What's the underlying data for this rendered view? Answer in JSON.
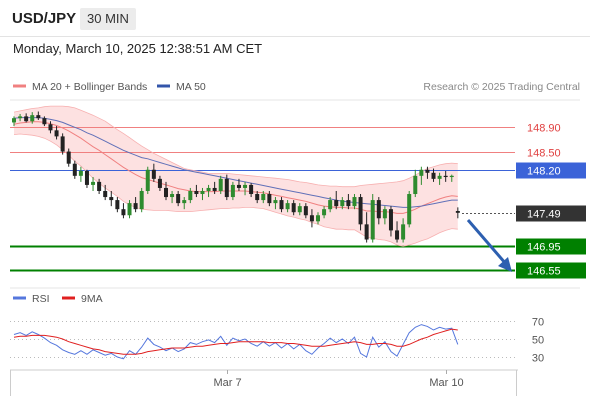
{
  "header": {
    "symbol": "USD/JPY",
    "timeframe": "30 MIN",
    "datetime": "Monday, March 10, 2025 12:38:51 AM CET"
  },
  "legend": {
    "ma20_label": "MA 20 + Bollinger Bands",
    "ma50_label": "MA 50",
    "ma20_color": "#f08080",
    "ma50_color": "#3355aa",
    "credit": "Research © 2025 Trading Central"
  },
  "rsi_legend": {
    "rsi_label": "RSI",
    "ma_label": "9MA",
    "rsi_color": "#5577dd",
    "ma_color": "#e02020"
  },
  "colors": {
    "bull": "#2e8b2e",
    "bear": "#222222",
    "band_fill": "#fde1e1",
    "resistance": "#f08080",
    "ma50_line": "#3b63d8",
    "support": "#008000",
    "current": "#333333"
  },
  "chart_data": [
    {
      "type": "candlestick",
      "title": "USD/JPY",
      "ylim": [
        146.3,
        149.35
      ],
      "x_ticks": [
        "Mar 7",
        "Mar 10"
      ],
      "levels": [
        {
          "label": "148.90",
          "value": 148.9,
          "kind": "resistance"
        },
        {
          "label": "148.50",
          "value": 148.5,
          "kind": "resistance"
        },
        {
          "label": "148.20",
          "value": 148.2,
          "kind": "pivot"
        },
        {
          "label": "147.49",
          "value": 147.49,
          "kind": "current"
        },
        {
          "label": "146.95",
          "value": 146.95,
          "kind": "support"
        },
        {
          "label": "146.55",
          "value": 146.55,
          "kind": "support"
        }
      ],
      "ohlc": [
        [
          148.98,
          149.08,
          148.92,
          149.05
        ],
        [
          149.05,
          149.12,
          149.0,
          149.08
        ],
        [
          149.08,
          149.13,
          148.98,
          149.0
        ],
        [
          149.0,
          149.15,
          148.96,
          149.1
        ],
        [
          149.1,
          149.16,
          149.02,
          149.05
        ],
        [
          149.05,
          149.08,
          148.92,
          148.95
        ],
        [
          148.95,
          149.0,
          148.8,
          148.85
        ],
        [
          148.85,
          148.92,
          148.7,
          148.75
        ],
        [
          148.75,
          148.8,
          148.45,
          148.5
        ],
        [
          148.5,
          148.55,
          148.25,
          148.3
        ],
        [
          148.3,
          148.35,
          148.05,
          148.1
        ],
        [
          148.1,
          148.25,
          148.0,
          148.18
        ],
        [
          148.18,
          148.2,
          147.9,
          147.95
        ],
        [
          147.95,
          148.08,
          147.85,
          148.0
        ],
        [
          148.0,
          148.05,
          147.8,
          147.85
        ],
        [
          147.85,
          147.95,
          147.7,
          147.75
        ],
        [
          147.75,
          147.85,
          147.6,
          147.7
        ],
        [
          147.7,
          147.75,
          147.5,
          147.55
        ],
        [
          147.55,
          147.65,
          147.4,
          147.45
        ],
        [
          147.45,
          147.7,
          147.4,
          147.65
        ],
        [
          147.65,
          147.75,
          147.5,
          147.55
        ],
        [
          147.55,
          147.9,
          147.5,
          147.85
        ],
        [
          147.85,
          148.25,
          147.8,
          148.2
        ],
        [
          148.2,
          148.3,
          148.0,
          148.05
        ],
        [
          148.05,
          148.1,
          147.85,
          147.9
        ],
        [
          147.9,
          148.0,
          147.7,
          147.75
        ],
        [
          147.75,
          147.85,
          147.65,
          147.8
        ],
        [
          147.8,
          147.85,
          147.6,
          147.65
        ],
        [
          147.65,
          147.75,
          147.55,
          147.7
        ],
        [
          147.7,
          147.9,
          147.65,
          147.85
        ],
        [
          147.85,
          147.95,
          147.75,
          147.8
        ],
        [
          147.8,
          147.9,
          147.7,
          147.85
        ],
        [
          147.85,
          147.95,
          147.75,
          147.9
        ],
        [
          147.9,
          148.0,
          147.8,
          147.85
        ],
        [
          147.85,
          148.1,
          147.8,
          148.05
        ],
        [
          148.05,
          148.12,
          147.7,
          147.75
        ],
        [
          147.75,
          148.0,
          147.7,
          147.95
        ],
        [
          147.95,
          148.05,
          147.85,
          147.9
        ],
        [
          147.9,
          148.0,
          147.78,
          147.95
        ],
        [
          147.95,
          147.98,
          147.75,
          147.8
        ],
        [
          147.8,
          147.85,
          147.65,
          147.7
        ],
        [
          147.7,
          147.85,
          147.65,
          147.8
        ],
        [
          147.8,
          147.85,
          147.6,
          147.65
        ],
        [
          147.65,
          147.75,
          147.55,
          147.7
        ],
        [
          147.7,
          147.75,
          147.5,
          147.55
        ],
        [
          147.55,
          147.7,
          147.5,
          147.65
        ],
        [
          147.65,
          147.7,
          147.45,
          147.5
        ],
        [
          147.5,
          147.65,
          147.45,
          147.6
        ],
        [
          147.6,
          147.65,
          147.4,
          147.45
        ],
        [
          147.45,
          147.55,
          147.25,
          147.35
        ],
        [
          147.35,
          147.5,
          147.3,
          147.45
        ],
        [
          147.45,
          147.6,
          147.4,
          147.55
        ],
        [
          147.55,
          147.75,
          147.5,
          147.7
        ],
        [
          147.7,
          147.85,
          147.55,
          147.6
        ],
        [
          147.6,
          147.75,
          147.55,
          147.7
        ],
        [
          147.7,
          147.8,
          147.55,
          147.6
        ],
        [
          147.6,
          147.8,
          147.55,
          147.75
        ],
        [
          147.75,
          147.8,
          147.2,
          147.3
        ],
        [
          147.3,
          147.5,
          147.0,
          147.05
        ],
        [
          147.05,
          147.8,
          147.0,
          147.7
        ],
        [
          147.7,
          147.75,
          147.3,
          147.4
        ],
        [
          147.4,
          147.6,
          147.3,
          147.55
        ],
        [
          147.55,
          147.6,
          147.1,
          147.2
        ],
        [
          147.2,
          147.35,
          147.0,
          147.05
        ],
        [
          147.05,
          147.4,
          147.0,
          147.3
        ],
        [
          147.3,
          147.85,
          147.25,
          147.8
        ],
        [
          147.8,
          148.2,
          147.75,
          148.1
        ],
        [
          148.1,
          148.25,
          147.95,
          148.2
        ],
        [
          148.2,
          148.25,
          148.05,
          148.15
        ],
        [
          148.15,
          148.22,
          148.0,
          148.05
        ],
        [
          148.05,
          148.15,
          147.95,
          148.1
        ],
        [
          148.1,
          148.18,
          148.0,
          148.08
        ],
        [
          148.08,
          148.12,
          148.0,
          148.1
        ],
        [
          147.52,
          147.58,
          147.4,
          147.49
        ]
      ],
      "ma20": [
        148.95,
        148.97,
        148.98,
        148.99,
        148.99,
        148.98,
        148.96,
        148.93,
        148.89,
        148.84,
        148.78,
        148.72,
        148.65,
        148.58,
        148.52,
        148.45,
        148.38,
        148.31,
        148.24,
        148.18,
        148.12,
        148.07,
        148.04,
        148.01,
        147.98,
        147.95,
        147.92,
        147.89,
        147.87,
        147.85,
        147.84,
        147.84,
        147.84,
        147.84,
        147.85,
        147.85,
        147.85,
        147.85,
        147.85,
        147.84,
        147.83,
        147.82,
        147.8,
        147.78,
        147.76,
        147.74,
        147.72,
        147.7,
        147.68,
        147.65,
        147.62,
        147.6,
        147.59,
        147.58,
        147.58,
        147.57,
        147.57,
        147.55,
        147.52,
        147.52,
        147.51,
        147.51,
        147.5,
        147.48,
        147.48,
        147.51,
        147.55,
        147.6,
        147.64,
        147.68,
        147.72,
        147.75,
        147.77,
        147.76
      ],
      "bb_upper": [
        149.15,
        149.17,
        149.19,
        149.21,
        149.22,
        149.24,
        149.25,
        149.25,
        149.25,
        149.24,
        149.22,
        149.18,
        149.14,
        149.1,
        149.05,
        149.0,
        148.93,
        148.86,
        148.8,
        148.73,
        148.66,
        148.59,
        148.53,
        148.47,
        148.42,
        148.37,
        148.32,
        148.27,
        148.22,
        148.2,
        148.18,
        148.16,
        148.14,
        148.14,
        148.14,
        148.14,
        148.13,
        148.12,
        148.11,
        148.1,
        148.09,
        148.08,
        148.07,
        148.06,
        148.05,
        148.04,
        148.02,
        148.0,
        147.99,
        147.97,
        147.95,
        147.94,
        147.93,
        147.93,
        147.92,
        147.92,
        147.92,
        147.94,
        147.95,
        147.96,
        147.97,
        147.98,
        147.99,
        148.0,
        148.02,
        148.06,
        148.11,
        148.17,
        148.22,
        148.25,
        148.28,
        148.3,
        148.31,
        148.3
      ],
      "bb_lower": [
        148.78,
        148.79,
        148.78,
        148.77,
        148.75,
        148.72,
        148.67,
        148.61,
        148.53,
        148.44,
        148.34,
        148.26,
        148.16,
        148.06,
        147.98,
        147.9,
        147.83,
        147.76,
        147.68,
        147.62,
        147.58,
        147.55,
        147.54,
        147.53,
        147.53,
        147.53,
        147.52,
        147.51,
        147.51,
        147.51,
        147.52,
        147.53,
        147.54,
        147.55,
        147.56,
        147.56,
        147.57,
        147.57,
        147.58,
        147.58,
        147.57,
        147.56,
        147.53,
        147.5,
        147.47,
        147.44,
        147.42,
        147.39,
        147.37,
        147.33,
        147.3,
        147.26,
        147.24,
        147.22,
        147.22,
        147.21,
        147.21,
        147.15,
        147.09,
        147.07,
        147.05,
        147.04,
        147.01,
        146.96,
        146.94,
        146.96,
        146.99,
        147.03,
        147.06,
        147.11,
        147.16,
        147.2,
        147.23,
        147.22
      ],
      "ma50": [
        149.05,
        149.06,
        149.06,
        149.06,
        149.06,
        149.05,
        149.03,
        149.01,
        148.98,
        148.94,
        148.9,
        148.86,
        148.81,
        148.77,
        148.72,
        148.67,
        148.62,
        148.57,
        148.52,
        148.48,
        148.44,
        148.4,
        148.38,
        148.35,
        148.32,
        148.29,
        148.26,
        148.23,
        148.2,
        148.18,
        148.16,
        148.14,
        148.12,
        148.1,
        148.08,
        148.06,
        148.04,
        148.02,
        148.0,
        147.98,
        147.96,
        147.94,
        147.92,
        147.9,
        147.88,
        147.86,
        147.84,
        147.82,
        147.8,
        147.78,
        147.76,
        147.74,
        147.72,
        147.7,
        147.68,
        147.67,
        147.66,
        147.65,
        147.64,
        147.63,
        147.62,
        147.61,
        147.6,
        147.59,
        147.58,
        147.58,
        147.59,
        147.6,
        147.62,
        147.64,
        147.66,
        147.68,
        147.7,
        147.7
      ]
    },
    {
      "type": "line",
      "title": "RSI",
      "ylim": [
        20,
        80
      ],
      "y_ticks": [
        70,
        50,
        30
      ],
      "series": [
        {
          "name": "RSI",
          "values": [
            55,
            57,
            54,
            58,
            55,
            51,
            46,
            43,
            38,
            35,
            33,
            37,
            33,
            38,
            35,
            32,
            34,
            30,
            28,
            37,
            33,
            41,
            51,
            44,
            41,
            37,
            40,
            36,
            39,
            46,
            44,
            47,
            49,
            46,
            53,
            43,
            51,
            48,
            50,
            45,
            42,
            47,
            42,
            46,
            40,
            45,
            39,
            44,
            37,
            33,
            40,
            45,
            51,
            46,
            50,
            45,
            52,
            34,
            30,
            52,
            41,
            47,
            36,
            31,
            44,
            57,
            63,
            66,
            64,
            60,
            63,
            61,
            62,
            44
          ]
        },
        {
          "name": "9MA",
          "values": [
            52,
            53,
            53,
            54,
            54,
            54,
            53,
            52,
            50,
            47,
            45,
            43,
            41,
            39,
            38,
            36,
            35,
            34,
            33,
            33,
            33,
            34,
            36,
            37,
            38,
            39,
            40,
            40,
            40,
            41,
            42,
            42,
            43,
            44,
            45,
            45,
            46,
            47,
            47,
            47,
            47,
            47,
            46,
            46,
            46,
            45,
            45,
            44,
            43,
            42,
            42,
            42,
            43,
            44,
            45,
            46,
            47,
            46,
            44,
            44,
            45,
            45,
            44,
            42,
            42,
            44,
            47,
            50,
            52,
            55,
            57,
            59,
            61,
            60
          ]
        }
      ]
    }
  ]
}
